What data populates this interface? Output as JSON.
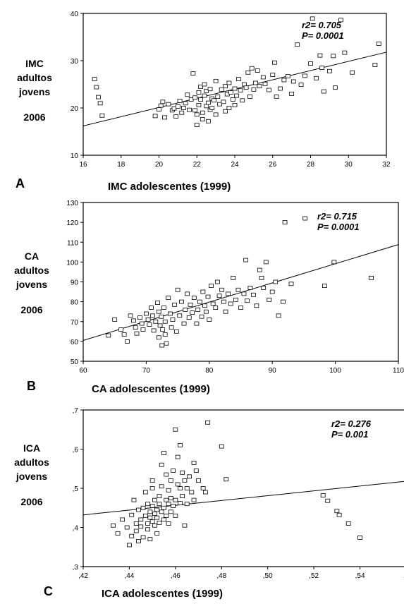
{
  "panels": [
    {
      "letter": "A",
      "ylabel": [
        "IMC",
        "adultos",
        "jovens"
      ],
      "ylabel_year": "2006",
      "xlabel": "IMC adolescentes  (1999)",
      "stats": [
        "r2= 0.705",
        "P= 0.0001"
      ]
    },
    {
      "letter": "B",
      "ylabel": [
        "CA",
        "adultos",
        "jovens"
      ],
      "ylabel_year": "2006",
      "xlabel": "CA adolescentes  (1999)",
      "stats": [
        "r2= 0.715",
        "P= 0.0001"
      ]
    },
    {
      "letter": "C",
      "ylabel": [
        "ICA",
        "adultos",
        "jovens"
      ],
      "ylabel_year": "2006",
      "xlabel": "ICA adolescentes  (1999)",
      "stats": [
        "r2= 0.276",
        "P= 0.001"
      ]
    }
  ],
  "chart_data": [
    {
      "type": "scatter",
      "title": "",
      "xlabel": "IMC adolescentes  (1999)",
      "ylabel": "IMC adultos jovens 2006",
      "xlim": [
        16,
        32
      ],
      "ylim": [
        10,
        40
      ],
      "xticks": [
        16,
        18,
        20,
        22,
        24,
        26,
        28,
        30,
        32
      ],
      "yticks": [
        10,
        20,
        30,
        40
      ],
      "xtick_labels": [
        "16",
        "18",
        "20",
        "22",
        "24",
        "26",
        "28",
        "30",
        "32"
      ],
      "ytick_labels": [
        "10",
        "20",
        "30",
        "40"
      ],
      "annotation": [
        "r2= 0.705",
        "P= 0.0001"
      ],
      "regression_line": [
        [
          16,
          16.2
        ],
        [
          32,
          31.8
        ]
      ],
      "points": [
        [
          16.6,
          26.1
        ],
        [
          16.7,
          24.4
        ],
        [
          16.8,
          22.3
        ],
        [
          16.9,
          21.0
        ],
        [
          17.0,
          18.4
        ],
        [
          19.8,
          18.3
        ],
        [
          20.0,
          19.7
        ],
        [
          20.1,
          20.5
        ],
        [
          20.2,
          21.3
        ],
        [
          20.3,
          18.0
        ],
        [
          20.5,
          20.8
        ],
        [
          20.7,
          19.5
        ],
        [
          20.8,
          19.9
        ],
        [
          20.9,
          18.2
        ],
        [
          21.0,
          20.3
        ],
        [
          21.1,
          21.5
        ],
        [
          21.2,
          19.0
        ],
        [
          21.3,
          20.0
        ],
        [
          21.4,
          21.0
        ],
        [
          21.5,
          22.8
        ],
        [
          21.6,
          19.6
        ],
        [
          21.7,
          21.8
        ],
        [
          21.8,
          27.3
        ],
        [
          21.9,
          22.2
        ],
        [
          21.9,
          19.5
        ],
        [
          22.0,
          16.4
        ],
        [
          22.0,
          18.6
        ],
        [
          22.1,
          20.6
        ],
        [
          22.1,
          23.3
        ],
        [
          22.2,
          24.5
        ],
        [
          22.2,
          21.8
        ],
        [
          22.3,
          17.6
        ],
        [
          22.3,
          19.0
        ],
        [
          22.4,
          22.6
        ],
        [
          22.4,
          25.0
        ],
        [
          22.5,
          20.4
        ],
        [
          22.5,
          23.6
        ],
        [
          22.6,
          17.2
        ],
        [
          22.6,
          21.1
        ],
        [
          22.7,
          19.6
        ],
        [
          22.7,
          24.0
        ],
        [
          22.8,
          22.0
        ],
        [
          22.8,
          20.0
        ],
        [
          22.9,
          21.6
        ],
        [
          23.0,
          25.7
        ],
        [
          23.0,
          18.6
        ],
        [
          23.1,
          22.4
        ],
        [
          23.2,
          20.8
        ],
        [
          23.3,
          23.9
        ],
        [
          23.4,
          21.3
        ],
        [
          23.5,
          24.6
        ],
        [
          23.5,
          19.3
        ],
        [
          23.6,
          22.9
        ],
        [
          23.7,
          20.0
        ],
        [
          23.7,
          25.3
        ],
        [
          23.8,
          23.3
        ],
        [
          23.9,
          21.8
        ],
        [
          24.0,
          24.1
        ],
        [
          24.0,
          20.6
        ],
        [
          24.1,
          22.6
        ],
        [
          24.2,
          26.1
        ],
        [
          24.3,
          23.7
        ],
        [
          24.4,
          21.6
        ],
        [
          24.5,
          25.0
        ],
        [
          24.6,
          24.3
        ],
        [
          24.7,
          27.5
        ],
        [
          24.8,
          22.4
        ],
        [
          24.9,
          28.4
        ],
        [
          25.0,
          23.9
        ],
        [
          25.1,
          25.3
        ],
        [
          25.2,
          27.9
        ],
        [
          25.3,
          24.6
        ],
        [
          25.5,
          26.5
        ],
        [
          25.6,
          25.1
        ],
        [
          25.8,
          23.8
        ],
        [
          26.0,
          27.0
        ],
        [
          26.1,
          29.6
        ],
        [
          26.2,
          22.4
        ],
        [
          26.4,
          24.1
        ],
        [
          26.6,
          25.9
        ],
        [
          26.8,
          26.7
        ],
        [
          27.0,
          23.0
        ],
        [
          27.1,
          25.6
        ],
        [
          27.3,
          33.4
        ],
        [
          27.5,
          24.9
        ],
        [
          27.7,
          26.8
        ],
        [
          28.0,
          29.4
        ],
        [
          28.1,
          38.9
        ],
        [
          28.3,
          26.3
        ],
        [
          28.5,
          31.1
        ],
        [
          28.6,
          28.5
        ],
        [
          28.7,
          23.5
        ],
        [
          29.0,
          27.8
        ],
        [
          29.2,
          31.0
        ],
        [
          29.3,
          24.3
        ],
        [
          29.6,
          38.6
        ],
        [
          29.8,
          31.7
        ],
        [
          30.2,
          27.5
        ],
        [
          31.4,
          29.1
        ],
        [
          31.6,
          33.6
        ]
      ]
    },
    {
      "type": "scatter",
      "title": "",
      "xlabel": "CA adolescentes  (1999)",
      "ylabel": "CA adultos jovens 2006",
      "xlim": [
        60,
        110
      ],
      "ylim": [
        50,
        130
      ],
      "xticks": [
        60,
        70,
        80,
        90,
        100,
        110
      ],
      "yticks": [
        50,
        60,
        70,
        80,
        90,
        100,
        110,
        120,
        130
      ],
      "xtick_labels": [
        "60",
        "70",
        "80",
        "90",
        "100",
        "110"
      ],
      "ytick_labels": [
        "50",
        "60",
        "70",
        "80",
        "90",
        "100",
        "110",
        "120",
        "130"
      ],
      "annotation": [
        "r2= 0.715",
        "P= 0.0001"
      ],
      "regression_line": [
        [
          60,
          60.5
        ],
        [
          110,
          108.8
        ]
      ],
      "points": [
        [
          64.0,
          63.0
        ],
        [
          65.0,
          71.0
        ],
        [
          66.0,
          66.0
        ],
        [
          66.5,
          63.5
        ],
        [
          67.0,
          60.0
        ],
        [
          67.5,
          73.0
        ],
        [
          68.0,
          70.5
        ],
        [
          68.3,
          67.0
        ],
        [
          68.5,
          64.0
        ],
        [
          69.0,
          72.0
        ],
        [
          69.3,
          69.0
        ],
        [
          69.5,
          66.0
        ],
        [
          70.0,
          74.0
        ],
        [
          70.3,
          71.0
        ],
        [
          70.5,
          68.5
        ],
        [
          70.8,
          77.0
        ],
        [
          71.0,
          73.0
        ],
        [
          71.2,
          65.5
        ],
        [
          71.5,
          70.0
        ],
        [
          71.8,
          79.5
        ],
        [
          72.0,
          75.0
        ],
        [
          72.0,
          62.0
        ],
        [
          72.2,
          68.0
        ],
        [
          72.4,
          72.5
        ],
        [
          72.5,
          58.0
        ],
        [
          72.6,
          66.0
        ],
        [
          72.8,
          77.0
        ],
        [
          73.0,
          70.0
        ],
        [
          73.0,
          63.5
        ],
        [
          73.2,
          59.0
        ],
        [
          73.5,
          82.0
        ],
        [
          73.8,
          74.0
        ],
        [
          74.0,
          67.0
        ],
        [
          74.2,
          71.0
        ],
        [
          74.5,
          78.5
        ],
        [
          74.8,
          65.0
        ],
        [
          75.0,
          86.0
        ],
        [
          75.3,
          73.0
        ],
        [
          75.6,
          80.0
        ],
        [
          76.0,
          69.0
        ],
        [
          76.2,
          76.0
        ],
        [
          76.5,
          84.0
        ],
        [
          76.8,
          72.0
        ],
        [
          77.0,
          78.5
        ],
        [
          77.3,
          74.5
        ],
        [
          77.6,
          82.0
        ],
        [
          78.0,
          69.0
        ],
        [
          78.2,
          76.0
        ],
        [
          78.5,
          80.0
        ],
        [
          78.8,
          72.5
        ],
        [
          79.0,
          85.0
        ],
        [
          79.3,
          78.0
        ],
        [
          79.5,
          75.0
        ],
        [
          79.8,
          82.5
        ],
        [
          80.0,
          71.0
        ],
        [
          80.3,
          88.0
        ],
        [
          80.6,
          79.0
        ],
        [
          81.0,
          77.0
        ],
        [
          81.3,
          90.0
        ],
        [
          81.6,
          83.0
        ],
        [
          82.0,
          86.0
        ],
        [
          82.3,
          80.0
        ],
        [
          82.6,
          75.0
        ],
        [
          83.0,
          84.0
        ],
        [
          83.4,
          79.0
        ],
        [
          83.8,
          92.0
        ],
        [
          84.2,
          81.0
        ],
        [
          84.6,
          86.0
        ],
        [
          85.0,
          77.0
        ],
        [
          85.5,
          84.0
        ],
        [
          85.8,
          101.0
        ],
        [
          86.0,
          80.5
        ],
        [
          86.5,
          87.0
        ],
        [
          87.0,
          83.5
        ],
        [
          87.5,
          78.0
        ],
        [
          88.0,
          96.0
        ],
        [
          88.3,
          92.0
        ],
        [
          88.6,
          87.0
        ],
        [
          89.0,
          100.0
        ],
        [
          89.5,
          81.0
        ],
        [
          90.0,
          85.0
        ],
        [
          90.5,
          90.0
        ],
        [
          91.0,
          73.0
        ],
        [
          91.7,
          80.0
        ],
        [
          92.0,
          120.0
        ],
        [
          93.0,
          89.0
        ],
        [
          95.2,
          122.0
        ],
        [
          98.3,
          88.0
        ],
        [
          99.8,
          100.0
        ],
        [
          105.7,
          92.0
        ]
      ]
    },
    {
      "type": "scatter",
      "title": "",
      "xlabel": "ICA adolescentes  (1999)",
      "ylabel": "ICA adultos jovens 2006",
      "xlim": [
        0.42,
        0.56
      ],
      "ylim": [
        0.3,
        0.7
      ],
      "xticks": [
        0.42,
        0.44,
        0.46,
        0.48,
        0.5,
        0.52,
        0.54,
        0.56
      ],
      "yticks": [
        0.3,
        0.4,
        0.5,
        0.6,
        0.7
      ],
      "xtick_labels": [
        ",42",
        ",44",
        ",46",
        ",48",
        ",50",
        ",52",
        ",54",
        ",5"
      ],
      "ytick_labels": [
        ",3",
        ",4",
        ",5",
        ",6",
        ",7"
      ],
      "annotation": [
        "r2= 0.276",
        "P= 0.001"
      ],
      "regression_line": [
        [
          0.42,
          0.432
        ],
        [
          0.56,
          0.518
        ]
      ],
      "points": [
        [
          0.433,
          0.405
        ],
        [
          0.435,
          0.385
        ],
        [
          0.437,
          0.42
        ],
        [
          0.439,
          0.4
        ],
        [
          0.44,
          0.355
        ],
        [
          0.441,
          0.378
        ],
        [
          0.441,
          0.432
        ],
        [
          0.442,
          0.47
        ],
        [
          0.443,
          0.41
        ],
        [
          0.443,
          0.391
        ],
        [
          0.444,
          0.445
        ],
        [
          0.444,
          0.365
        ],
        [
          0.445,
          0.42
        ],
        [
          0.445,
          0.402
        ],
        [
          0.446,
          0.45
        ],
        [
          0.446,
          0.375
        ],
        [
          0.447,
          0.43
        ],
        [
          0.447,
          0.49
        ],
        [
          0.448,
          0.41
        ],
        [
          0.448,
          0.395
        ],
        [
          0.448,
          0.46
        ],
        [
          0.449,
          0.425
        ],
        [
          0.449,
          0.44
        ],
        [
          0.449,
          0.37
        ],
        [
          0.45,
          0.415
        ],
        [
          0.45,
          0.455
        ],
        [
          0.45,
          0.5
        ],
        [
          0.45,
          0.52
        ],
        [
          0.451,
          0.435
        ],
        [
          0.451,
          0.405
        ],
        [
          0.451,
          0.47
        ],
        [
          0.452,
          0.445
        ],
        [
          0.452,
          0.425
        ],
        [
          0.452,
          0.385
        ],
        [
          0.453,
          0.46
        ],
        [
          0.453,
          0.48
        ],
        [
          0.453,
          0.412
        ],
        [
          0.454,
          0.44
        ],
        [
          0.454,
          0.505
        ],
        [
          0.454,
          0.56
        ],
        [
          0.455,
          0.45
        ],
        [
          0.455,
          0.42
        ],
        [
          0.455,
          0.59
        ],
        [
          0.456,
          0.47
        ],
        [
          0.456,
          0.43
        ],
        [
          0.456,
          0.535
        ],
        [
          0.457,
          0.46
        ],
        [
          0.457,
          0.495
        ],
        [
          0.457,
          0.41
        ],
        [
          0.458,
          0.44
        ],
        [
          0.458,
          0.52
        ],
        [
          0.458,
          0.475
        ],
        [
          0.459,
          0.455
        ],
        [
          0.459,
          0.545
        ],
        [
          0.46,
          0.47
        ],
        [
          0.46,
          0.65
        ],
        [
          0.46,
          0.43
        ],
        [
          0.461,
          0.51
        ],
        [
          0.461,
          0.58
        ],
        [
          0.462,
          0.462
        ],
        [
          0.462,
          0.5
        ],
        [
          0.462,
          0.61
        ],
        [
          0.463,
          0.54
        ],
        [
          0.463,
          0.48
        ],
        [
          0.464,
          0.52
        ],
        [
          0.464,
          0.405
        ],
        [
          0.465,
          0.46
        ],
        [
          0.465,
          0.5
        ],
        [
          0.466,
          0.53
        ],
        [
          0.467,
          0.49
        ],
        [
          0.468,
          0.565
        ],
        [
          0.468,
          0.47
        ],
        [
          0.469,
          0.545
        ],
        [
          0.47,
          0.52
        ],
        [
          0.472,
          0.5
        ],
        [
          0.473,
          0.49
        ],
        [
          0.474,
          0.668
        ],
        [
          0.48,
          0.607
        ],
        [
          0.482,
          0.523
        ],
        [
          0.524,
          0.482
        ],
        [
          0.526,
          0.468
        ],
        [
          0.53,
          0.442
        ],
        [
          0.531,
          0.432
        ],
        [
          0.535,
          0.41
        ],
        [
          0.54,
          0.374
        ]
      ]
    }
  ]
}
